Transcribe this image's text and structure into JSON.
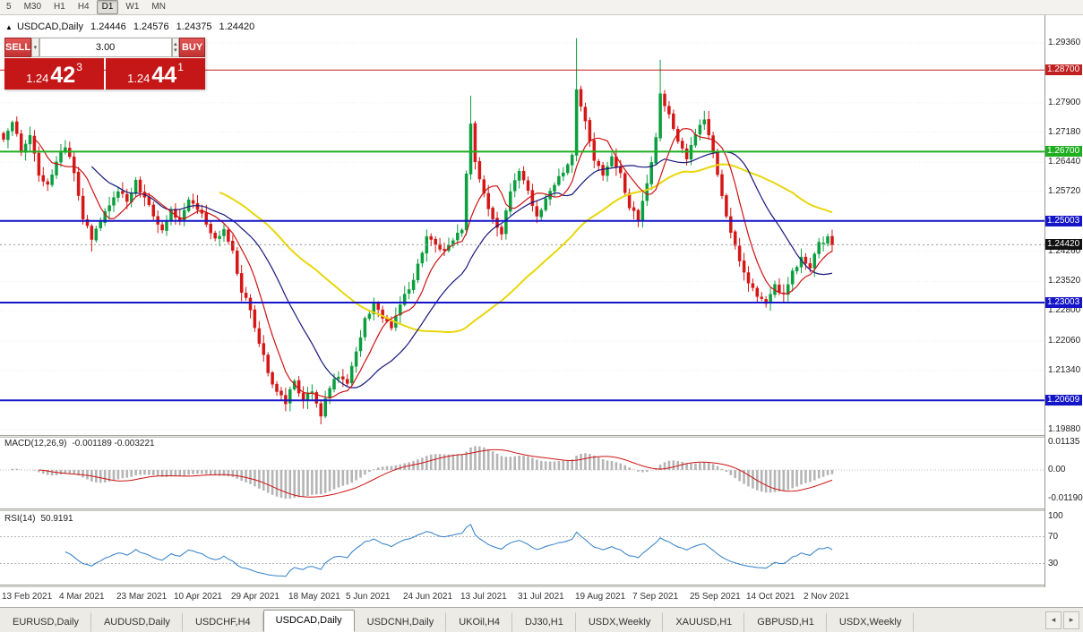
{
  "toolbar": {
    "timeframes": [
      {
        "label": "5",
        "active": false
      },
      {
        "label": "M30",
        "active": false
      },
      {
        "label": "H1",
        "active": false
      },
      {
        "label": "H4",
        "active": false
      },
      {
        "label": "D1",
        "active": true
      },
      {
        "label": "W1",
        "active": false
      },
      {
        "label": "MN",
        "active": false
      }
    ]
  },
  "chart_header": {
    "symbol_title": "USDCAD,Daily",
    "open": "1.24446",
    "high": "1.24576",
    "low": "1.24375",
    "close": "1.24420"
  },
  "trade_panel": {
    "sell_label": "SELL",
    "buy_label": "BUY",
    "volume": "3.00",
    "sell_price": {
      "prefix": "1.24",
      "big": "42",
      "sup": "3"
    },
    "buy_price": {
      "prefix": "1.24",
      "big": "44",
      "sup": "1"
    }
  },
  "icons": {
    "marker": "▲",
    "dropdown": "▾",
    "spin_up": "▴",
    "spin_down": "▾",
    "tab_prev": "◂",
    "tab_next": "▸"
  },
  "colors": {
    "candle_up": "#0b9e3e",
    "candle_down": "#d51616",
    "macd_bar": "#b5b5b5",
    "macd_signal": "#cf1212",
    "rsi_line": "#2f7ec9",
    "grid": "#ededed",
    "current_badge": "#101010"
  },
  "chart_data": {
    "type": "candlestick",
    "symbol": "USDCAD",
    "timeframe": "Daily",
    "ohlc": {
      "open": 1.24446,
      "high": 1.24576,
      "low": 1.24375,
      "close": 1.2442
    },
    "x_labels": [
      "13 Feb 2021",
      "4 Mar 2021",
      "23 Mar 2021",
      "10 Apr 2021",
      "29 Apr 2021",
      "18 May 2021",
      "5 Jun 2021",
      "24 Jun 2021",
      "13 Jul 2021",
      "31 Jul 2021",
      "19 Aug 2021",
      "7 Sep 2021",
      "25 Sep 2021",
      "14 Oct 2021",
      "2 Nov 2021"
    ],
    "layout": {
      "candles_per_label": 13,
      "legend": "none",
      "grid": "horizontal-dotted"
    },
    "price_axis": {
      "min": 1.1976,
      "max": 1.2956,
      "ticks": [
        {
          "label": "1.29360",
          "value": 1.2936
        },
        {
          "label": "1.27900",
          "value": 1.279
        },
        {
          "label": "1.27180",
          "value": 1.2718
        },
        {
          "label": "1.26440",
          "value": 1.2644
        },
        {
          "label": "1.25720",
          "value": 1.2572
        },
        {
          "label": "1.24260",
          "value": 1.2426
        },
        {
          "label": "1.23520",
          "value": 1.2352
        },
        {
          "label": "1.22800",
          "value": 1.228
        },
        {
          "label": "1.22060",
          "value": 1.2206
        },
        {
          "label": "1.21340",
          "value": 1.2134
        },
        {
          "label": "1.19880",
          "value": 1.1988
        }
      ]
    },
    "hlines": [
      {
        "price": 1.287,
        "label": "1.28700",
        "color": "#c02020",
        "width": 1
      },
      {
        "price": 1.267,
        "label": "1.26700",
        "color": "#1fae1f",
        "width": 2
      },
      {
        "price": 1.25003,
        "label": "1.25003",
        "color": "#1414c8",
        "width": 2
      },
      {
        "price": 1.23003,
        "label": "1.23003",
        "color": "#1414c8",
        "width": 2
      },
      {
        "price": 1.20609,
        "label": "1.20609",
        "color": "#1414c8",
        "width": 2
      }
    ],
    "current_price": {
      "value": 1.2442,
      "label": "1.24420"
    },
    "moving_averages": [
      {
        "period": 50,
        "color": "#e9d70c",
        "width": 2
      },
      {
        "period": 21,
        "color": "#16167d",
        "width": 1.2
      },
      {
        "period": 8,
        "color": "#cf1212",
        "width": 1.2
      }
    ],
    "candles": {
      "count": 189,
      "anchors": [
        [
          0,
          1.27
        ],
        [
          2,
          1.2742
        ],
        [
          4,
          1.2668
        ],
        [
          6,
          1.271
        ],
        [
          8,
          1.2612
        ],
        [
          10,
          1.259
        ],
        [
          12,
          1.2645
        ],
        [
          14,
          1.268
        ],
        [
          16,
          1.2618
        ],
        [
          18,
          1.2505
        ],
        [
          20,
          1.2455
        ],
        [
          22,
          1.2498
        ],
        [
          24,
          1.2538
        ],
        [
          26,
          1.2572
        ],
        [
          28,
          1.2548
        ],
        [
          30,
          1.26
        ],
        [
          32,
          1.2558
        ],
        [
          34,
          1.2512
        ],
        [
          36,
          1.2478
        ],
        [
          38,
          1.2528
        ],
        [
          40,
          1.2502
        ],
        [
          42,
          1.2552
        ],
        [
          44,
          1.2528
        ],
        [
          46,
          1.2492
        ],
        [
          48,
          1.2458
        ],
        [
          50,
          1.248
        ],
        [
          52,
          1.2428
        ],
        [
          54,
          1.2325
        ],
        [
          56,
          1.2282
        ],
        [
          58,
          1.22
        ],
        [
          60,
          1.2128
        ],
        [
          62,
          1.2082
        ],
        [
          64,
          1.2052
        ],
        [
          66,
          1.2108
        ],
        [
          68,
          1.2062
        ],
        [
          70,
          1.2082
        ],
        [
          72,
          1.2022
        ],
        [
          74,
          1.209
        ],
        [
          76,
          1.2118
        ],
        [
          78,
          1.2102
        ],
        [
          80,
          1.218
        ],
        [
          82,
          1.2262
        ],
        [
          84,
          1.23
        ],
        [
          86,
          1.2262
        ],
        [
          88,
          1.2238
        ],
        [
          90,
          1.2295
        ],
        [
          92,
          1.2332
        ],
        [
          94,
          1.2395
        ],
        [
          96,
          1.2462
        ],
        [
          98,
          1.2442
        ],
        [
          100,
          1.2428
        ],
        [
          102,
          1.2452
        ],
        [
          104,
          1.2478
        ],
        [
          106,
          1.2738
        ],
        [
          107,
          1.2645
        ],
        [
          109,
          1.2568
        ],
        [
          111,
          1.2505
        ],
        [
          113,
          1.2468
        ],
        [
          115,
          1.2572
        ],
        [
          117,
          1.2622
        ],
        [
          119,
          1.2575
        ],
        [
          121,
          1.2512
        ],
        [
          123,
          1.2555
        ],
        [
          125,
          1.2588
        ],
        [
          127,
          1.2618
        ],
        [
          129,
          1.2662
        ],
        [
          130,
          1.2822
        ],
        [
          132,
          1.2745
        ],
        [
          134,
          1.2648
        ],
        [
          136,
          1.2612
        ],
        [
          138,
          1.2658
        ],
        [
          140,
          1.2618
        ],
        [
          142,
          1.2532
        ],
        [
          144,
          1.2502
        ],
        [
          146,
          1.2592
        ],
        [
          148,
          1.2705
        ],
        [
          149,
          1.2812
        ],
        [
          151,
          1.2762
        ],
        [
          153,
          1.2695
        ],
        [
          155,
          1.2652
        ],
        [
          157,
          1.2712
        ],
        [
          159,
          1.2748
        ],
        [
          161,
          1.2668
        ],
        [
          163,
          1.2562
        ],
        [
          165,
          1.2472
        ],
        [
          167,
          1.2402
        ],
        [
          169,
          1.2348
        ],
        [
          171,
          1.2315
        ],
        [
          173,
          1.2298
        ],
        [
          175,
          1.2345
        ],
        [
          177,
          1.2322
        ],
        [
          179,
          1.2378
        ],
        [
          181,
          1.2412
        ],
        [
          183,
          1.2385
        ],
        [
          185,
          1.2448
        ],
        [
          187,
          1.2462
        ],
        [
          188,
          1.2442
        ]
      ],
      "overrides": {
        "20": {
          "low": 1.2425
        },
        "72": {
          "low": 1.2002
        },
        "106": {
          "high": 1.2807
        },
        "130": {
          "high": 1.2948
        },
        "149": {
          "high": 1.2895
        },
        "173": {
          "low": 1.2288
        }
      }
    },
    "macd": {
      "label": "MACD(12,26,9)",
      "value_text": "-0.001189 -0.003221",
      "fast": 12,
      "slow": 26,
      "signal": 9,
      "axis": [
        {
          "label": "0.01135",
          "value": 0.01135
        },
        {
          "label": "0.00",
          "value": 0
        },
        {
          "label": "-0.01190",
          "value": -0.0119
        }
      ]
    },
    "rsi": {
      "label": "RSI(14)",
      "value_text": "50.9191",
      "period": 14,
      "levels": [
        70,
        30
      ],
      "axis": [
        {
          "label": "100",
          "value": 100
        },
        {
          "label": "70",
          "value": 70
        },
        {
          "label": "30",
          "value": 30
        }
      ]
    }
  },
  "tabs": {
    "items": [
      {
        "label": "EURUSD,Daily",
        "active": false
      },
      {
        "label": "AUDUSD,Daily",
        "active": false
      },
      {
        "label": "USDCHF,H4",
        "active": false
      },
      {
        "label": "USDCAD,Daily",
        "active": true
      },
      {
        "label": "USDCNH,Daily",
        "active": false
      },
      {
        "label": "UKOil,H4",
        "active": false
      },
      {
        "label": "DJ30,H1",
        "active": false
      },
      {
        "label": "USDX,Weekly",
        "active": false
      },
      {
        "label": "XAUUSD,H1",
        "active": false
      },
      {
        "label": "GBPUSD,H1",
        "active": false
      },
      {
        "label": "USDX,Weekly",
        "active": false
      }
    ]
  }
}
